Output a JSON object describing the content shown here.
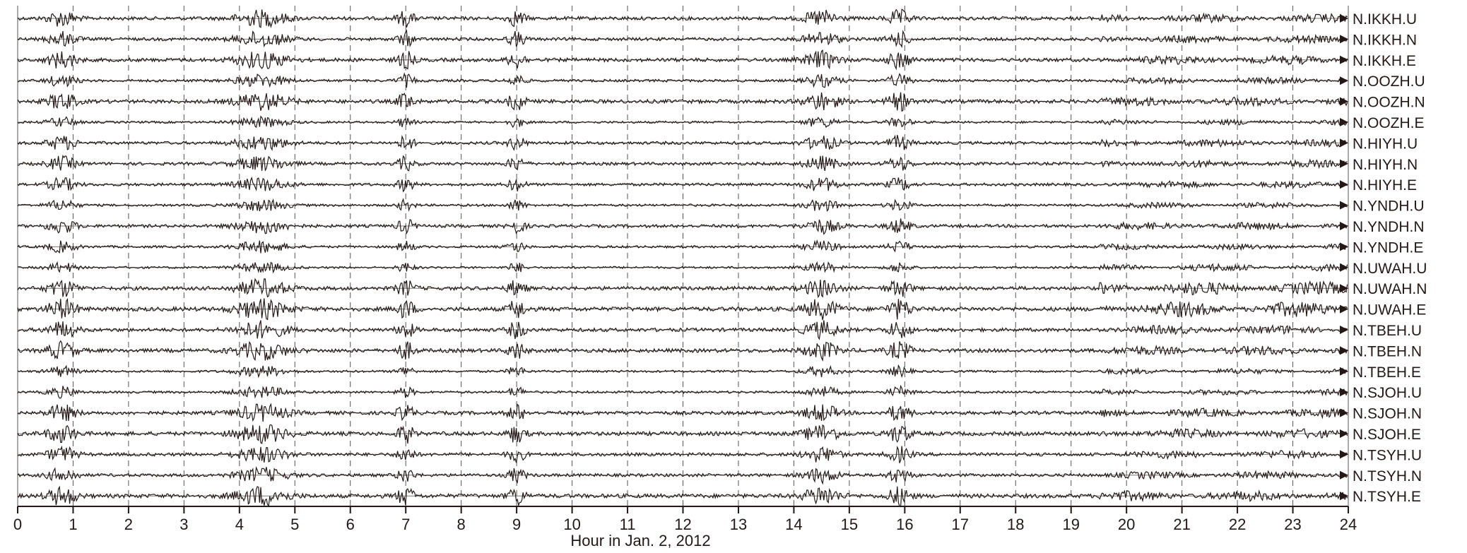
{
  "chart_data": {
    "type": "line",
    "title": "",
    "xlabel": "Hour in Jan. 2, 2012",
    "ylabel": "",
    "xlim": [
      0,
      24
    ],
    "x_ticks": [
      "0",
      "1",
      "2",
      "3",
      "4",
      "5",
      "6",
      "7",
      "8",
      "9",
      "10",
      "11",
      "12",
      "13",
      "14",
      "15",
      "16",
      "17",
      "18",
      "19",
      "20",
      "21",
      "22",
      "23",
      "24"
    ],
    "grid": "dashed vertical lines at each hour",
    "trace_color": "#231815",
    "stations": [
      "N.IKKH.U",
      "N.IKKH.N",
      "N.IKKH.E",
      "N.OOZH.U",
      "N.OOZH.N",
      "N.OOZH.E",
      "N.HIYH.U",
      "N.HIYH.N",
      "N.HIYH.E",
      "N.YNDH.U",
      "N.YNDH.N",
      "N.YNDH.E",
      "N.UWAH.U",
      "N.UWAH.N",
      "N.UWAH.E",
      "N.TBEH.U",
      "N.TBEH.N",
      "N.TBEH.E",
      "N.SJOH.U",
      "N.SJOH.N",
      "N.SJOH.E",
      "N.TSYH.U",
      "N.TSYH.N",
      "N.TSYH.E"
    ],
    "common_bursts_hours": [
      0.8,
      4.4,
      7.0,
      9.0,
      14.5,
      15.9
    ],
    "burst_widths_hours": [
      0.25,
      0.45,
      0.15,
      0.15,
      0.3,
      0.2
    ]
  }
}
